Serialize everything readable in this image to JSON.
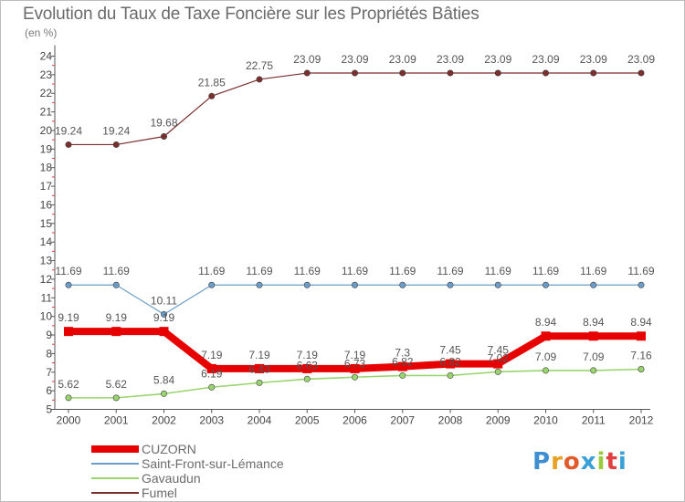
{
  "chart_data": {
    "type": "line",
    "title": "Evolution du Taux de Taxe Foncière sur les Propriétés Bâties",
    "ylabel": "(en %)",
    "xlabel": "",
    "categories": [
      "2000",
      "2001",
      "2002",
      "2003",
      "2004",
      "2005",
      "2006",
      "2007",
      "2008",
      "2009",
      "2010",
      "2011",
      "2012"
    ],
    "ylim": [
      5,
      24
    ],
    "yticks": [
      5,
      6,
      7,
      8,
      9,
      10,
      11,
      12,
      13,
      14,
      15,
      16,
      17,
      18,
      19,
      20,
      21,
      22,
      23,
      24
    ],
    "grid": false,
    "legend_position": "bottom-left",
    "series": [
      {
        "name": "Fumel",
        "color": "#7a2e2e",
        "width": 1.2,
        "values": [
          19.24,
          19.24,
          19.68,
          21.85,
          22.75,
          23.09,
          23.09,
          23.09,
          23.09,
          23.09,
          23.09,
          23.09,
          23.09
        ],
        "labels": [
          "19.24",
          "19.24",
          "19.68",
          "21.85",
          "22.75",
          "23.09",
          "23.09",
          "23.09",
          "23.09",
          "23.09",
          "23.09",
          "23.09",
          "23.09"
        ]
      },
      {
        "name": "Saint-Front-sur-Lémance",
        "color": "#6b9cc8",
        "width": 1.2,
        "values": [
          11.69,
          11.69,
          10.11,
          11.69,
          11.69,
          11.69,
          11.69,
          11.69,
          11.69,
          11.69,
          11.69,
          11.69,
          11.69
        ],
        "labels": [
          "11.69",
          "11.69",
          "10.11",
          "11.69",
          "11.69",
          "11.69",
          "11.69",
          "11.69",
          "11.69",
          "11.69",
          "11.69",
          "11.69",
          "11.69"
        ]
      },
      {
        "name": "Gavaudun",
        "color": "#9ad46e",
        "width": 1.6,
        "values": [
          5.62,
          5.62,
          5.84,
          6.19,
          6.43,
          6.63,
          6.73,
          6.82,
          6.82,
          7.02,
          7.09,
          7.09,
          7.16
        ],
        "labels": [
          "5.62",
          "5.62",
          "5.84",
          "6.19",
          "6.43",
          "6.63",
          "6.73",
          "6.82",
          "6.82",
          "7.02",
          "7.09",
          "7.09",
          "7.16"
        ]
      },
      {
        "name": "CUZORN",
        "color": "#e60000",
        "width": 8,
        "values": [
          9.19,
          9.19,
          9.19,
          7.19,
          7.19,
          7.19,
          7.19,
          7.3,
          7.45,
          7.45,
          8.94,
          8.94,
          8.94
        ],
        "labels": [
          "9.19",
          "9.19",
          "9.19",
          "7.19",
          "7.19",
          "7.19",
          "7.19",
          "7.3",
          "7.45",
          "7.45",
          "8.94",
          "8.94",
          "8.94"
        ]
      }
    ],
    "legend": [
      "CUZORN",
      "Saint-Front-sur-Lémance",
      "Gavaudun",
      "Fumel"
    ]
  },
  "logo": {
    "letters": [
      "P",
      "r",
      "o",
      "x",
      "i",
      "t",
      "i"
    ],
    "colors": [
      "#3f8fd0",
      "#e8a020",
      "#e05a2a",
      "#3aa0d8",
      "#9acb3c",
      "#e04040",
      "#3aa0d8"
    ]
  }
}
